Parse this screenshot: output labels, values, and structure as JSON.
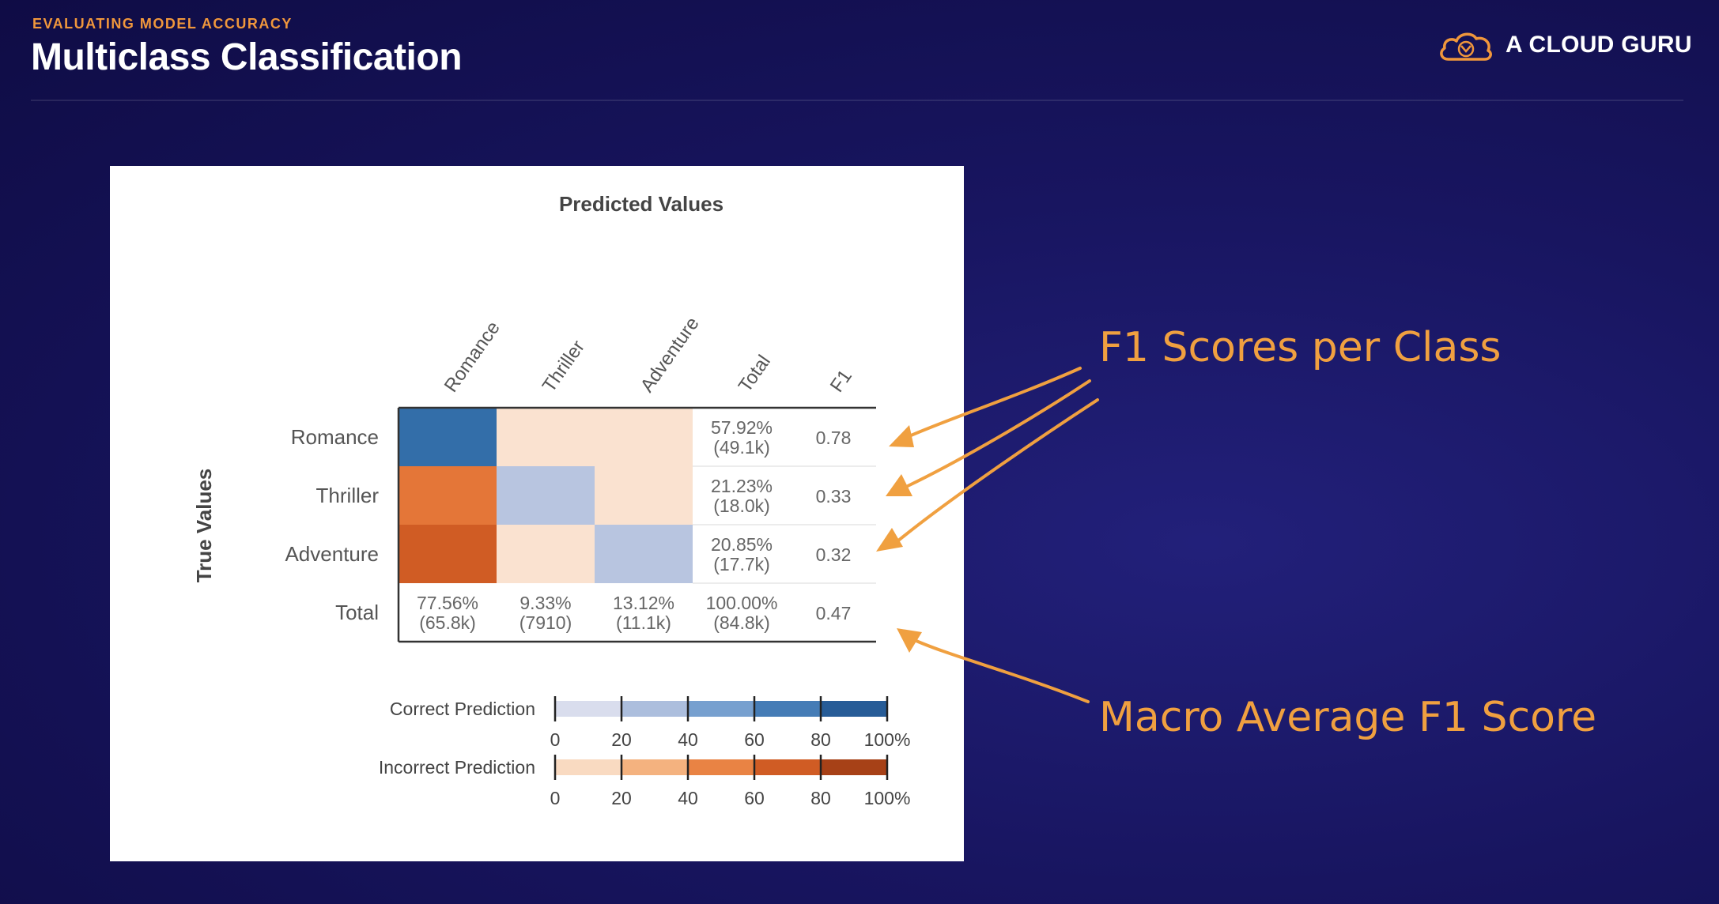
{
  "header": {
    "eyebrow": "EVALUATING MODEL ACCURACY",
    "title": "Multiclass Classification",
    "brand": "A CLOUD GURU"
  },
  "matrix": {
    "title": "Predicted Values",
    "y_title": "True Values",
    "columns": [
      "Romance",
      "Thriller",
      "Adventure",
      "Total",
      "F1"
    ],
    "rows": [
      {
        "label": "Romance",
        "cells": [
          {
            "type": "correct",
            "level": 0.78
          },
          {
            "type": "incorrect",
            "level": 0.05
          },
          {
            "type": "incorrect",
            "level": 0.05
          }
        ],
        "total_pct": "57.92%",
        "total_count": "(49.1k)",
        "f1": "0.78"
      },
      {
        "label": "Thriller",
        "cells": [
          {
            "type": "incorrect",
            "level": 0.55
          },
          {
            "type": "correct",
            "level": 0.25
          },
          {
            "type": "incorrect",
            "level": 0.05
          }
        ],
        "total_pct": "21.23%",
        "total_count": "(18.0k)",
        "f1": "0.33"
      },
      {
        "label": "Adventure",
        "cells": [
          {
            "type": "incorrect",
            "level": 0.7
          },
          {
            "type": "incorrect",
            "level": 0.05
          },
          {
            "type": "correct",
            "level": 0.25
          }
        ],
        "total_pct": "20.85%",
        "total_count": "(17.7k)",
        "f1": "0.32"
      }
    ],
    "total_row": {
      "label": "Total",
      "cells": [
        {
          "pct": "77.56%",
          "count": "(65.8k)"
        },
        {
          "pct": "9.33%",
          "count": "(7910)"
        },
        {
          "pct": "13.12%",
          "count": "(11.1k)"
        },
        {
          "pct": "100.00%",
          "count": "(84.8k)"
        }
      ],
      "f1": "0.47"
    },
    "legend": {
      "correct_label": "Correct Prediction",
      "incorrect_label": "Incorrect Prediction",
      "ticks": [
        "0",
        "20",
        "40",
        "60",
        "80",
        "100%"
      ],
      "correct_colors": [
        "#eeeef8",
        "#c4cbe2",
        "#93b1d8",
        "#5a8ec6",
        "#2f6aa6",
        "#1f4e87"
      ],
      "incorrect_colors": [
        "#fbeadf",
        "#f6c9a2",
        "#f19b5c",
        "#e06a2c",
        "#c04e1b",
        "#8e3412"
      ]
    }
  },
  "callouts": {
    "f1_per_class": "F1 Scores per Class",
    "macro_f1": "Macro Average F1 Score"
  },
  "colors": {
    "accent": "#f0a040",
    "background": "#181560"
  }
}
